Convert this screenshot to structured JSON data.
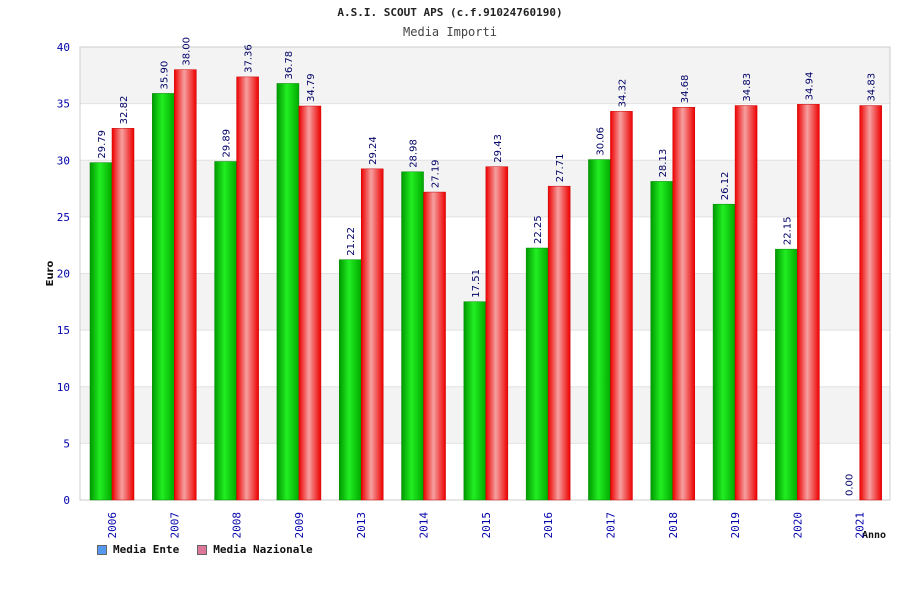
{
  "title": "A.S.I. SCOUT APS (c.f.91024760190)",
  "subtitle": "Media Importi",
  "legend": [
    {
      "label": "Media Ente",
      "color": "#5599ee"
    },
    {
      "label": "Media Nazionale",
      "color": "#dd7799"
    }
  ],
  "chart_data": {
    "type": "bar",
    "title": "Media Importi",
    "xlabel": "Anno",
    "ylabel": "Euro",
    "ylim": [
      0,
      40
    ],
    "yticks": [
      0,
      5,
      10,
      15,
      20,
      25,
      30,
      35,
      40
    ],
    "categories": [
      "2006",
      "2007",
      "2008",
      "2009",
      "2013",
      "2014",
      "2015",
      "2016",
      "2017",
      "2018",
      "2019",
      "2020",
      "2021"
    ],
    "series": [
      {
        "name": "Media Ente",
        "color": "#00bb00",
        "values": [
          29.79,
          35.9,
          29.89,
          36.78,
          21.22,
          28.98,
          17.51,
          22.25,
          30.06,
          28.13,
          26.12,
          22.15,
          0.0
        ],
        "labels": [
          "29.79",
          "35.90",
          "29.89",
          "36.78",
          "21.22",
          "28.98",
          "17.51",
          "22.25",
          "30.06",
          "28.13",
          "26.12",
          "22.15",
          "0.00"
        ]
      },
      {
        "name": "Media Nazionale",
        "color": "#ee1111",
        "values": [
          32.82,
          38.0,
          37.36,
          34.79,
          29.24,
          27.19,
          29.43,
          27.71,
          34.32,
          34.68,
          34.83,
          34.94,
          34.83
        ],
        "labels": [
          "32.82",
          "38.00",
          "37.36",
          "34.79",
          "29.24",
          "27.19",
          "29.43",
          "27.71",
          "34.32",
          "34.68",
          "34.83",
          "34.94",
          "34.83"
        ]
      }
    ],
    "grid": true
  }
}
